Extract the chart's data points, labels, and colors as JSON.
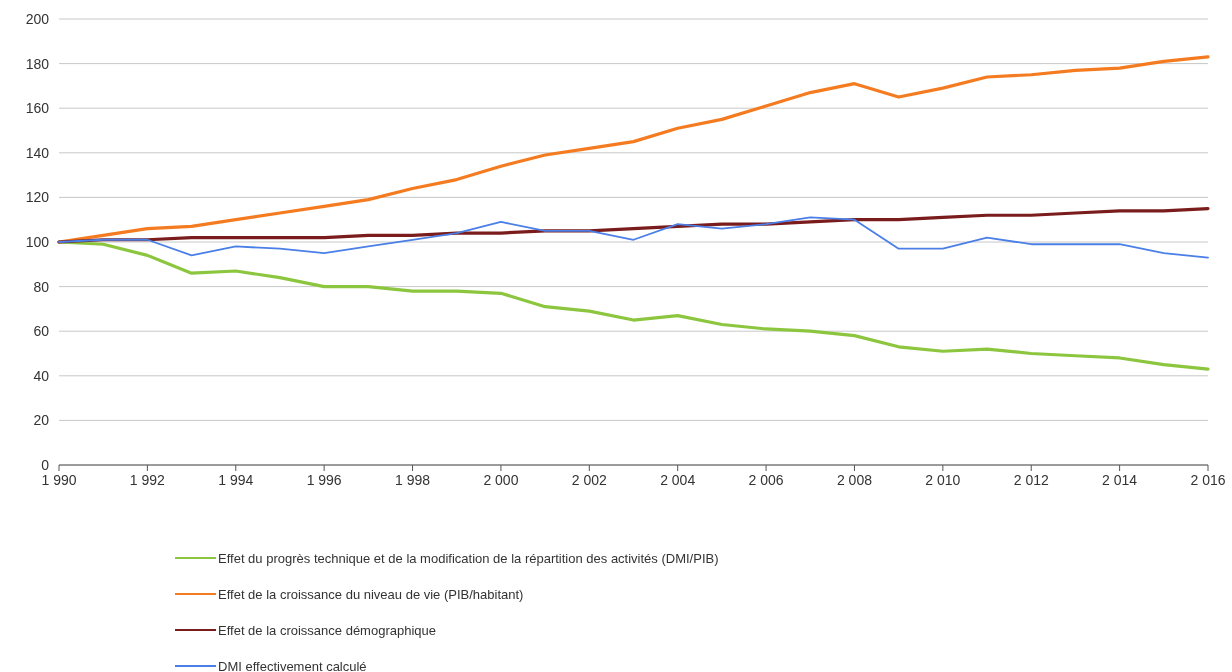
{
  "chart_data": {
    "type": "line",
    "x": [
      1990,
      1991,
      1992,
      1993,
      1994,
      1995,
      1996,
      1997,
      1998,
      1999,
      2000,
      2001,
      2002,
      2003,
      2004,
      2005,
      2006,
      2007,
      2008,
      2009,
      2010,
      2011,
      2012,
      2013,
      2014,
      2015,
      2016
    ],
    "series": [
      {
        "name": "Effet du progrès technique et de la modification de la répartition des activités (DMI/PIB)",
        "color": "#8cc63f",
        "values": [
          100,
          99,
          94,
          86,
          87,
          84,
          80,
          80,
          78,
          78,
          77,
          71,
          69,
          65,
          67,
          63,
          61,
          60,
          58,
          53,
          51,
          52,
          50,
          49,
          48,
          45,
          43
        ]
      },
      {
        "name": "Effet de la croissance du niveau de vie (PIB/habitant)",
        "color": "#f47b20",
        "values": [
          100,
          103,
          106,
          107,
          110,
          113,
          116,
          119,
          124,
          128,
          134,
          139,
          142,
          145,
          151,
          155,
          161,
          167,
          171,
          165,
          169,
          174,
          175,
          177,
          178,
          181,
          183
        ]
      },
      {
        "name": "Effet de la croissance démographique",
        "color": "#7b1c1c",
        "values": [
          100,
          101,
          101,
          102,
          102,
          102,
          102,
          103,
          103,
          104,
          104,
          105,
          105,
          106,
          107,
          108,
          108,
          109,
          110,
          110,
          111,
          112,
          112,
          113,
          114,
          114,
          115
        ]
      },
      {
        "name": "DMI effectivement calculé",
        "color": "#4a7fe8",
        "values": [
          100,
          101,
          101,
          94,
          98,
          97,
          95,
          98,
          101,
          104,
          109,
          105,
          105,
          101,
          108,
          106,
          108,
          111,
          110,
          97,
          97,
          102,
          99,
          99,
          99,
          95,
          93
        ]
      }
    ],
    "xlim": [
      1990,
      2016
    ],
    "xticks": [
      {
        "value": 1990,
        "label": "1 990"
      },
      {
        "value": 1992,
        "label": "1 992"
      },
      {
        "value": 1994,
        "label": "1 994"
      },
      {
        "value": 1996,
        "label": "1 996"
      },
      {
        "value": 1998,
        "label": "1 998"
      },
      {
        "value": 2000,
        "label": "2 000"
      },
      {
        "value": 2002,
        "label": "2 002"
      },
      {
        "value": 2004,
        "label": "2 004"
      },
      {
        "value": 2006,
        "label": "2 006"
      },
      {
        "value": 2008,
        "label": "2 008"
      },
      {
        "value": 2010,
        "label": "2 010"
      },
      {
        "value": 2012,
        "label": "2 012"
      },
      {
        "value": 2014,
        "label": "2 014"
      },
      {
        "value": 2016,
        "label": "2 016"
      }
    ],
    "ylim": [
      0,
      200
    ],
    "yticks": [
      0,
      20,
      40,
      60,
      80,
      100,
      120,
      140,
      160,
      180,
      200
    ],
    "grid": "y",
    "legend": "bottom",
    "marker": "none",
    "line_style": "solid"
  }
}
